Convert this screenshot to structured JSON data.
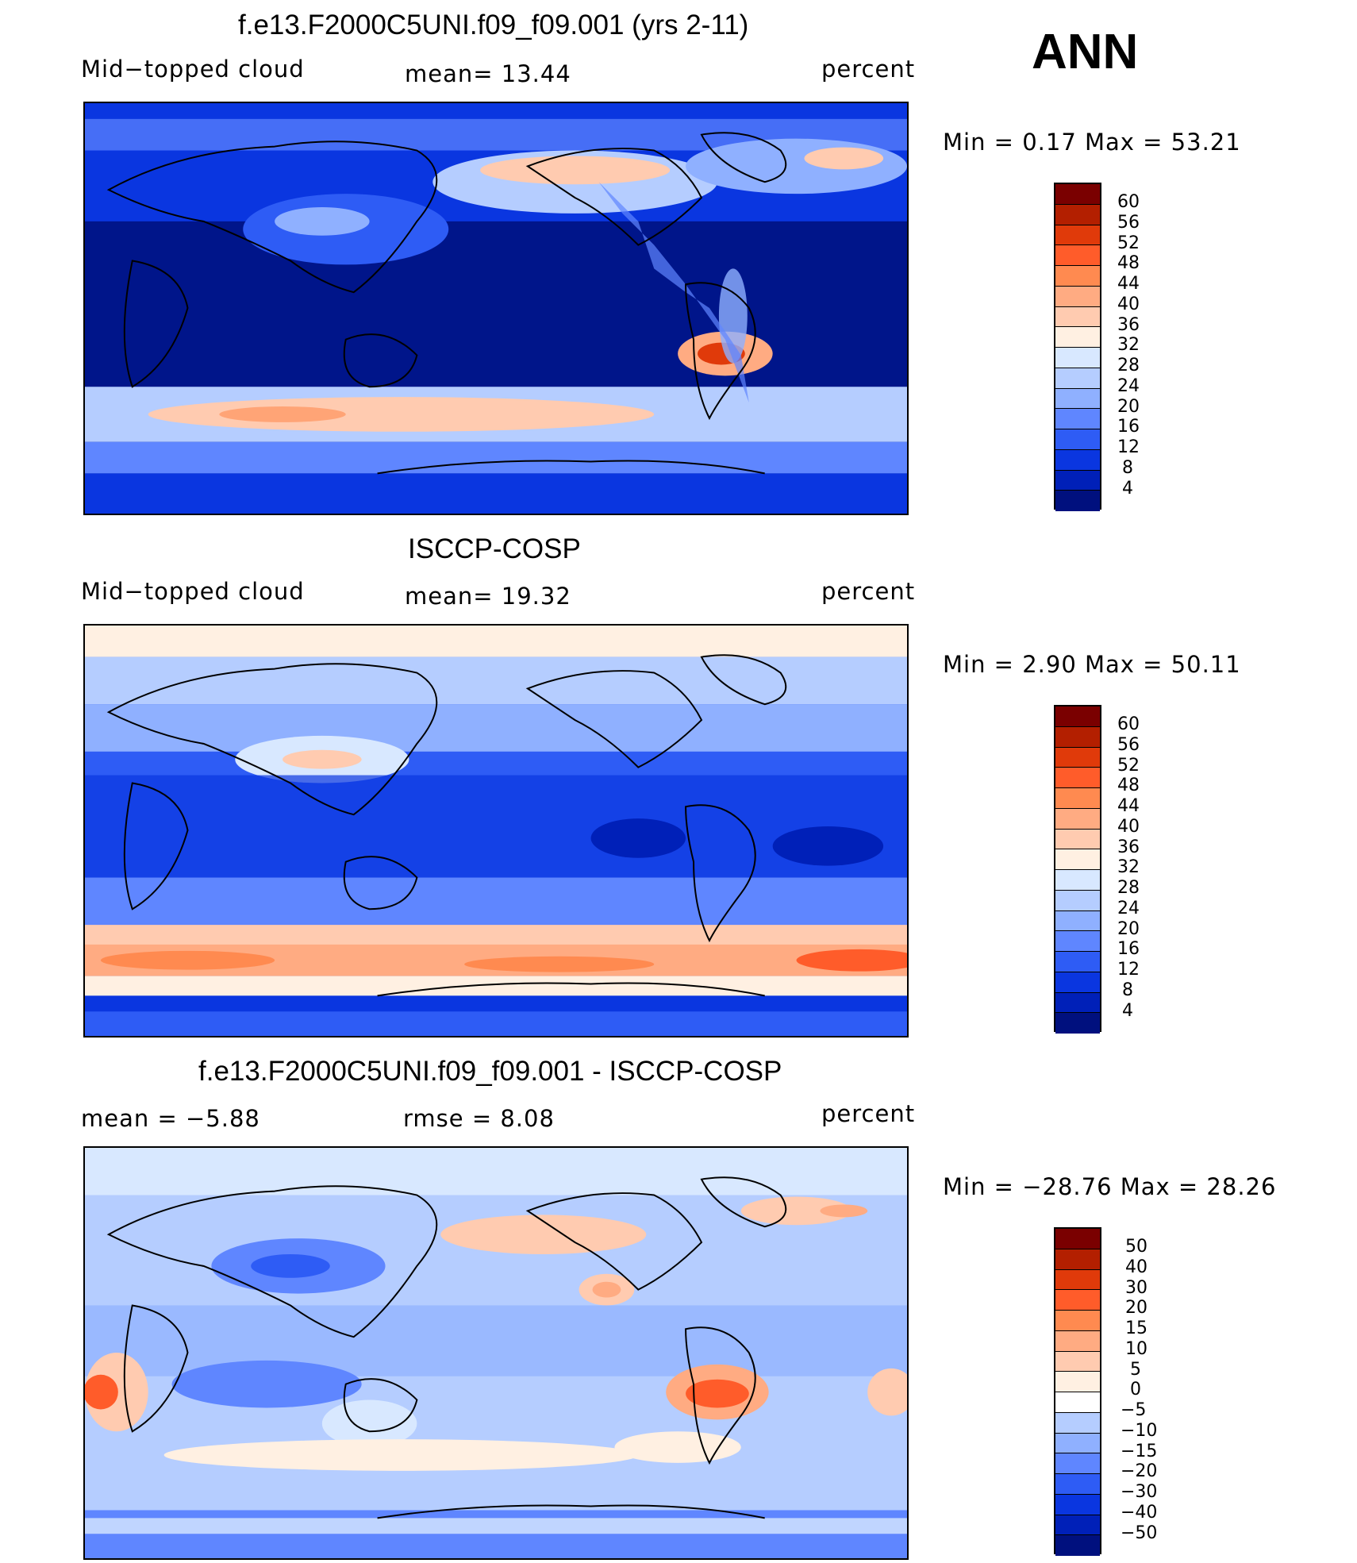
{
  "ann_label": "ANN",
  "panels": [
    {
      "title": "f.e13.F2000C5UNI.f09_f09.001 (yrs 2-11)",
      "left": "Mid−topped  cloud",
      "center": "mean=   13.44",
      "right": "percent",
      "minmax": "Min  =     0.17  Max  =    53.21",
      "ticks": [
        "60",
        "56",
        "52",
        "48",
        "44",
        "40",
        "36",
        "32",
        "28",
        "24",
        "20",
        "16",
        "12",
        "8",
        "4"
      ]
    },
    {
      "title": "ISCCP-COSP",
      "left": "Mid−topped  cloud",
      "center": "mean=   19.32",
      "right": "percent",
      "minmax": "Min  =     2.90  Max  =    50.11",
      "ticks": [
        "60",
        "56",
        "52",
        "48",
        "44",
        "40",
        "36",
        "32",
        "28",
        "24",
        "20",
        "16",
        "12",
        "8",
        "4"
      ]
    },
    {
      "title": "f.e13.F2000C5UNI.f09_f09.001 - ISCCP-COSP",
      "left": "mean  =    −5.88",
      "center": "rmse  =     8.08",
      "right": "percent",
      "minmax": "Min  = −28.76  Max  =    28.26",
      "ticks": [
        "50",
        "40",
        "30",
        "20",
        "15",
        "10",
        "5",
        "0",
        "−5",
        "−10",
        "−15",
        "−20",
        "−30",
        "−40",
        "−50"
      ]
    }
  ],
  "colors": {
    "scale": [
      "#7a0000",
      "#b31f00",
      "#e03a0a",
      "#ff5c2a",
      "#ff8a50",
      "#ffab82",
      "#ffcbb0",
      "#fff0e2",
      "#d8e8ff",
      "#b5cdff",
      "#8fb0ff",
      "#5f86ff",
      "#2e5cf5",
      "#0a36e0",
      "#0020b8",
      "#00107e"
    ]
  },
  "map_fields": {
    "ocean_base": [
      "#0a36e0",
      "#2e5cf5",
      "#b5cdff"
    ],
    "highlights": [
      "#ffcbb0",
      "#ff5c2a",
      "#d8e8ff"
    ]
  }
}
